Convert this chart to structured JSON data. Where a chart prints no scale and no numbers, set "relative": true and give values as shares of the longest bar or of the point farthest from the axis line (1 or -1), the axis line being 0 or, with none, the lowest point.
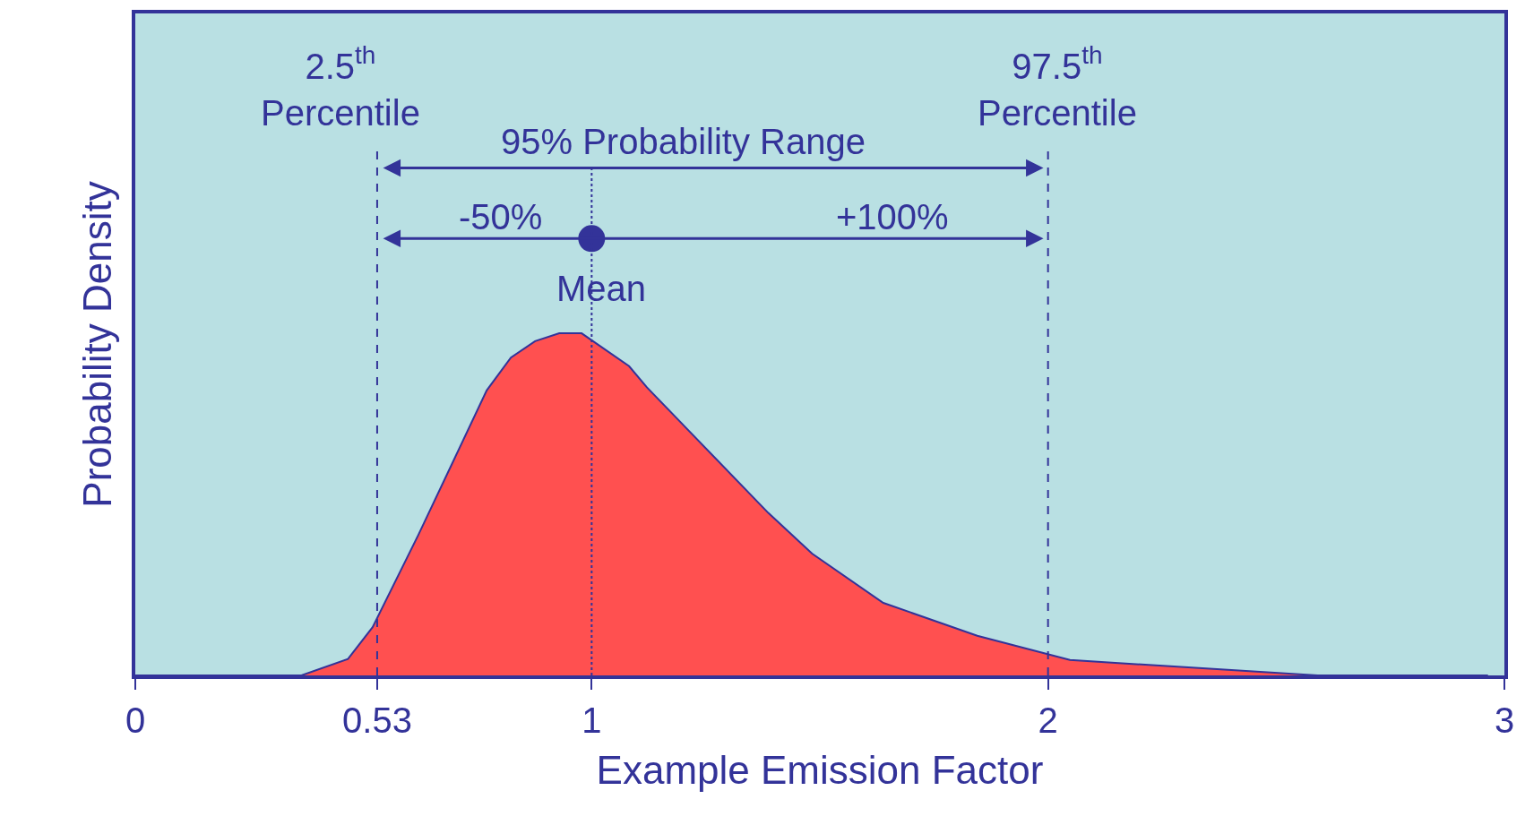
{
  "chart_data": {
    "type": "area",
    "xlabel": "Example Emission Factor",
    "ylabel": "Probability Density",
    "relative": true,
    "x": [
      0,
      0.364,
      0.466,
      0.52,
      0.62,
      0.77,
      0.823,
      0.876,
      0.929,
      0.978,
      1.082,
      1.121,
      1.387,
      1.483,
      1.639,
      1.845,
      2.048,
      2.591,
      2.964
    ],
    "series": [
      {
        "color": "#ff5050",
        "values": [
          0,
          0,
          0.048,
          0.141,
          0.41,
          0.833,
          0.929,
          0.977,
          1,
          1,
          0.904,
          0.842,
          0.475,
          0.356,
          0.212,
          0.116,
          0.045,
          0,
          0
        ]
      }
    ],
    "xlim": [
      0,
      3
    ],
    "xticks": [
      0,
      0.53,
      1,
      2,
      3
    ],
    "ref_lines": [
      {
        "axis": "x",
        "value": 0.53,
        "label": "2.5$^{th}$\nPercentile",
        "line_style": "dashed",
        "color": "#333399"
      },
      {
        "axis": "x",
        "value": 1,
        "label": "Mean",
        "line_style": "dotted",
        "color": "#333399"
      },
      {
        "axis": "x",
        "value": 2.0,
        "label": "97.5$^{th}$\nPercentile",
        "line_style": "dashed",
        "color": "#333399"
      }
    ],
    "annotations": [
      "95% Probability Range",
      "-50%",
      "+100%"
    ],
    "grid": false
  }
}
